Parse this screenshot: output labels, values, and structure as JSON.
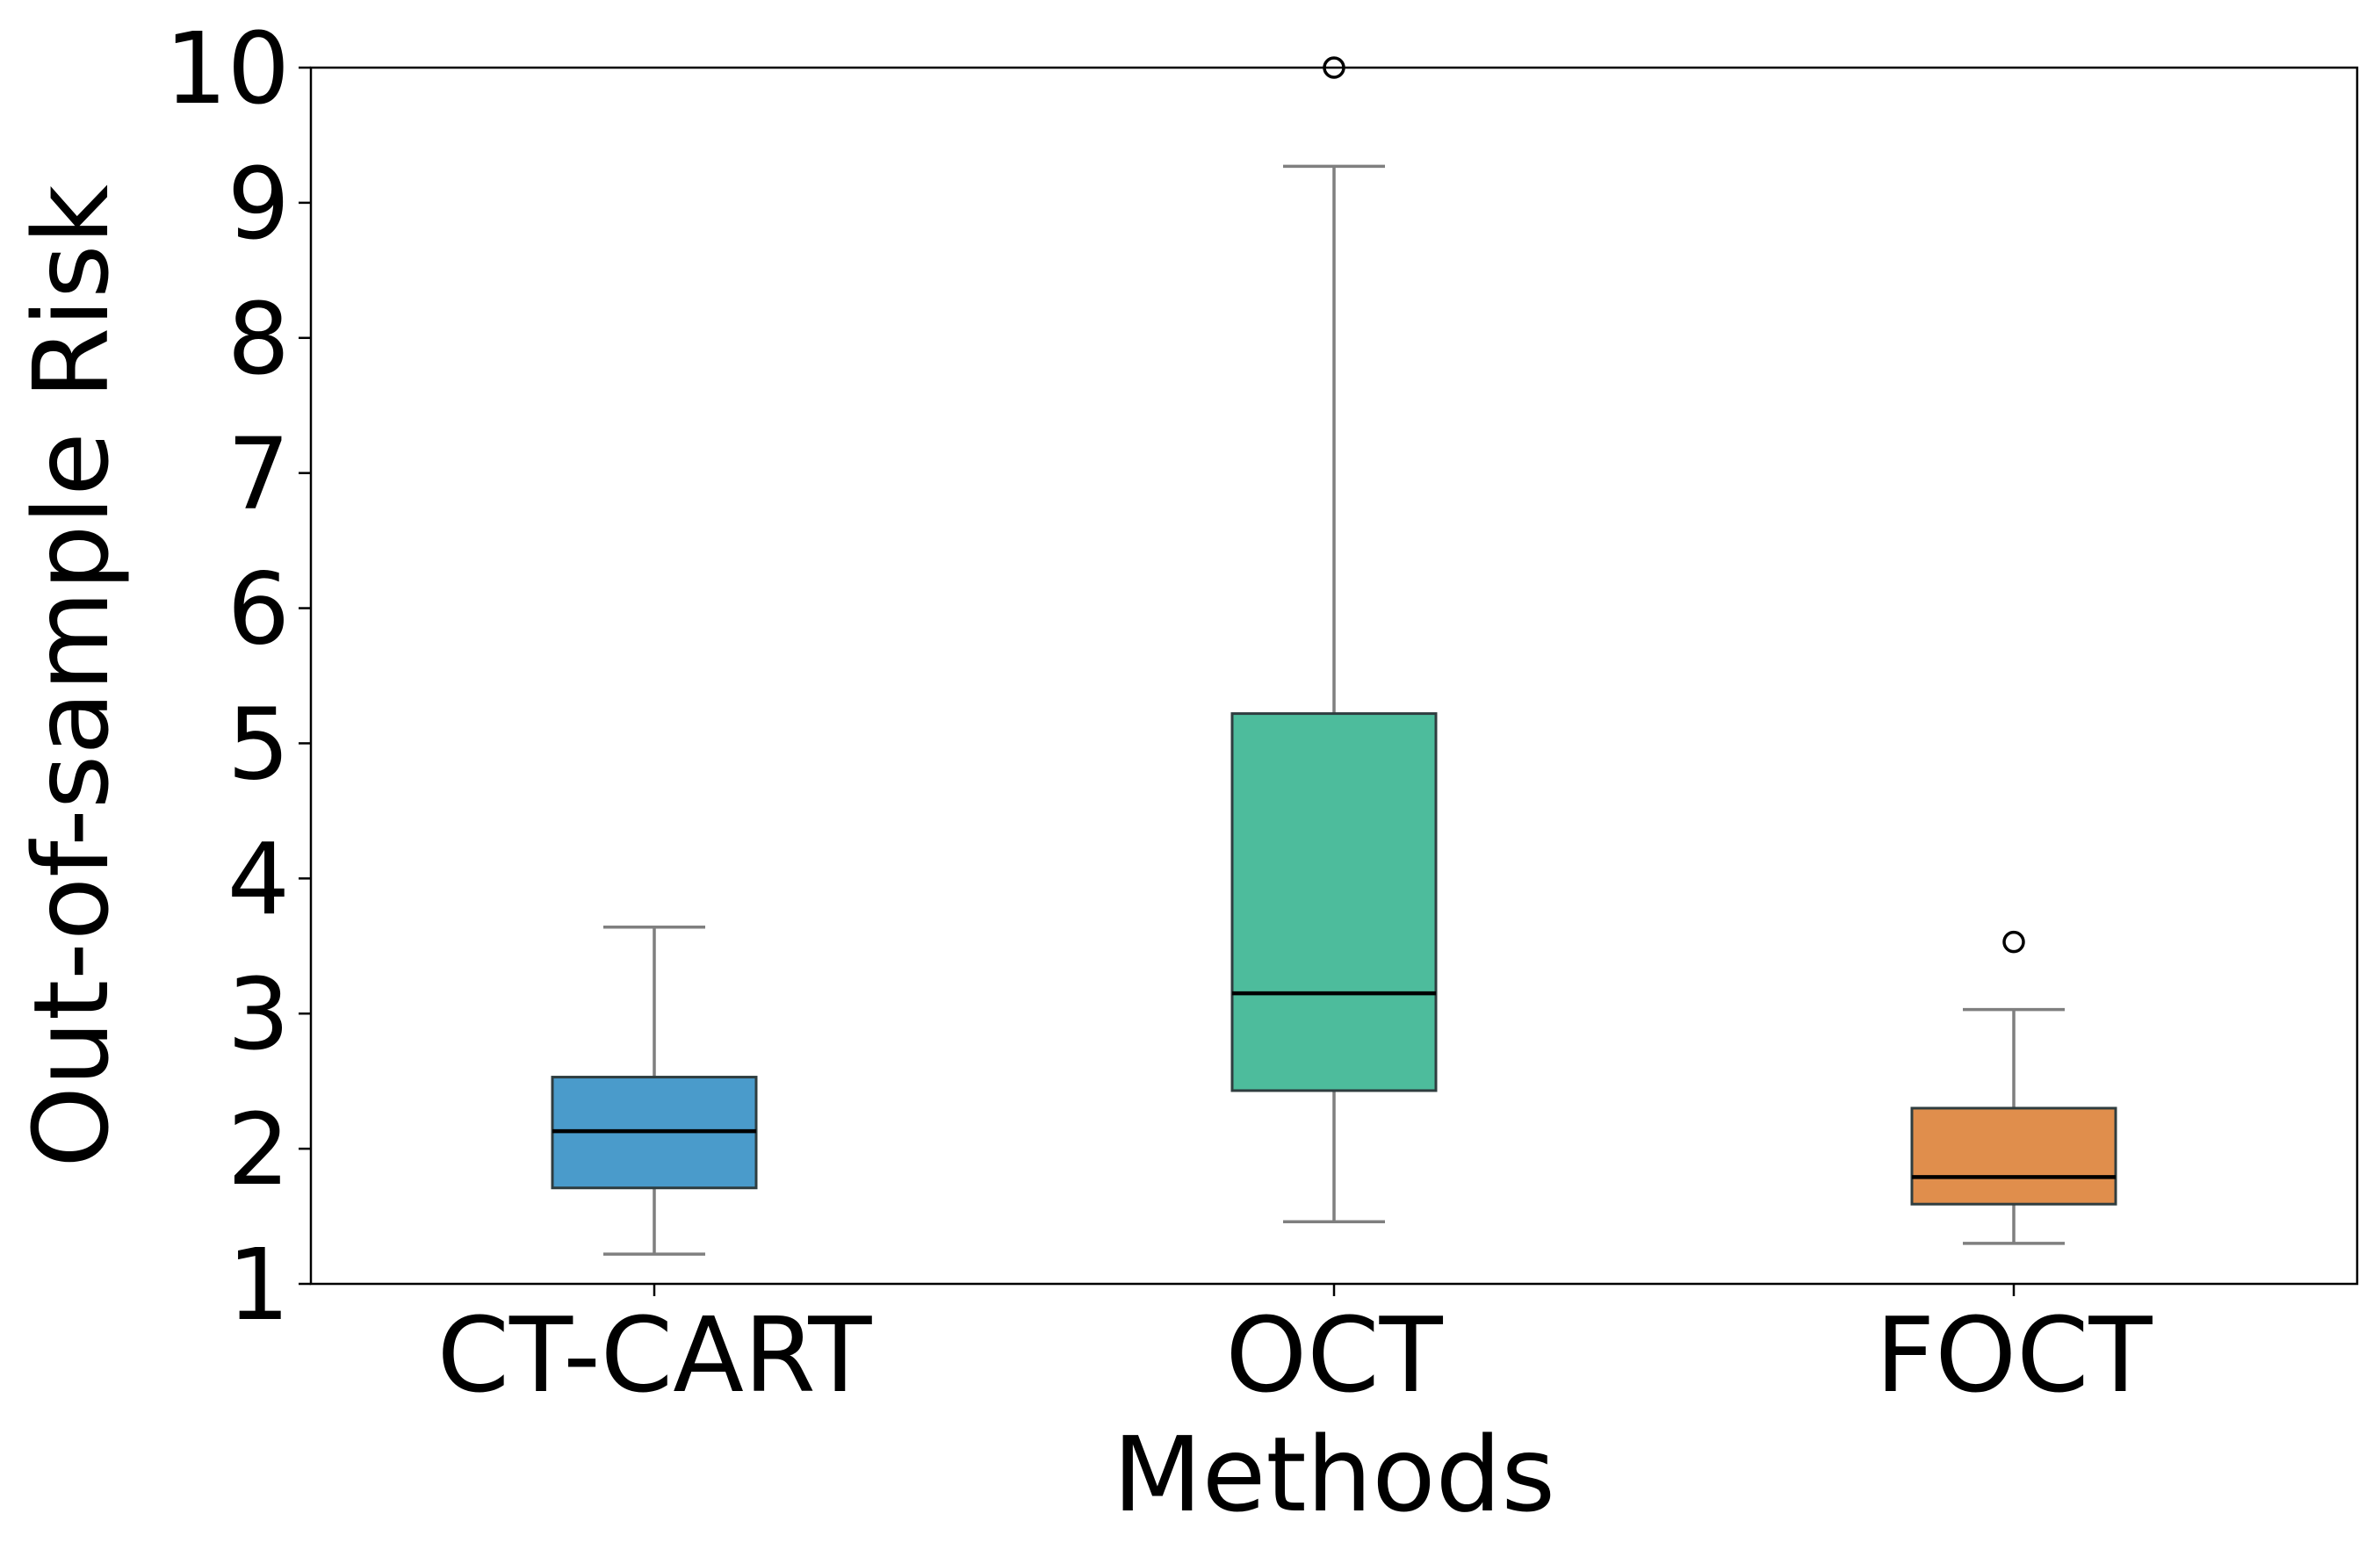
{
  "chart_data": {
    "type": "box",
    "title": "",
    "xlabel": "Methods",
    "ylabel": "Out-of-sample Risk",
    "ylim": [
      1,
      10
    ],
    "yticks": [
      1,
      2,
      3,
      4,
      5,
      6,
      7,
      8,
      9,
      10
    ],
    "ytick_labels": [
      "1",
      "2",
      "3",
      "4",
      "5",
      "6",
      "7",
      "8",
      "9",
      "10"
    ],
    "grid": false,
    "categories": [
      "CT-CART",
      "OCT",
      "FOCT"
    ],
    "boxes": [
      {
        "name": "CT-CART",
        "whisker_low": 1.22,
        "q1": 1.71,
        "median": 2.13,
        "q3": 2.53,
        "whisker_high": 3.64,
        "outliers": [],
        "color": "#4a9bcb"
      },
      {
        "name": "OCT",
        "whisker_low": 1.46,
        "q1": 2.43,
        "median": 3.15,
        "q3": 5.22,
        "whisker_high": 9.27,
        "outliers": [
          10.0
        ],
        "color": "#4dbc9c"
      },
      {
        "name": "FOCT",
        "whisker_low": 1.3,
        "q1": 1.59,
        "median": 1.79,
        "q3": 2.3,
        "whisker_high": 3.03,
        "outliers": [
          3.53
        ],
        "color": "#e08e4c"
      }
    ],
    "box_edge_color": "#2f3d3f",
    "whisker_color": "#7f7f7f",
    "median_color": "#000000"
  }
}
